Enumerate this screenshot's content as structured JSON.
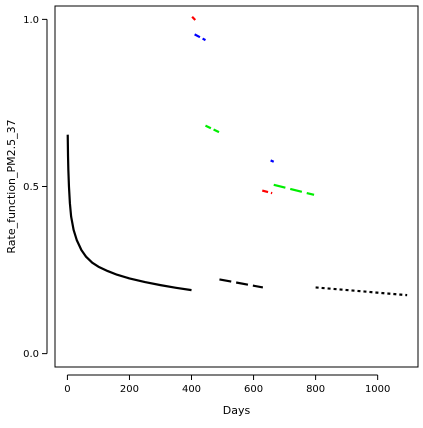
{
  "chart_data": {
    "type": "line",
    "title": "",
    "xlabel": "Days",
    "ylabel": "Rate_function_PM2.5_37",
    "xlim": [
      -40,
      1130
    ],
    "ylim": [
      -0.04,
      1.04
    ],
    "x_ticks": [
      0,
      200,
      400,
      600,
      800,
      1000
    ],
    "y_ticks": [
      0.0,
      0.5,
      1.0
    ],
    "x_tick_labels": [
      "0",
      "200",
      "400",
      "600",
      "800",
      "1000"
    ],
    "y_tick_labels": [
      "0.0",
      "0.5",
      "1.0"
    ],
    "grid": false,
    "legend": "none",
    "series": [
      {
        "color": "#000000",
        "dash": "solid",
        "width": 2.2,
        "x": [
          1,
          2,
          3,
          5,
          8,
          12,
          20,
          30,
          45,
          60,
          80,
          100,
          130,
          160,
          200,
          250,
          300,
          350,
          400
        ],
        "y": [
          0.655,
          0.59,
          0.55,
          0.5,
          0.45,
          0.41,
          0.37,
          0.34,
          0.31,
          0.29,
          0.272,
          0.26,
          0.247,
          0.236,
          0.225,
          0.214,
          0.205,
          0.197,
          0.19
        ]
      },
      {
        "color": "#000000",
        "dash": "long",
        "width": 2.2,
        "x": [
          490,
          630
        ],
        "y": [
          0.222,
          0.198
        ]
      },
      {
        "color": "#000000",
        "dash": "dotted",
        "width": 2.2,
        "x": [
          800,
          1095
        ],
        "y": [
          0.198,
          0.175
        ]
      },
      {
        "color": "#ff0000",
        "dash": "solid",
        "width": 2.2,
        "x": [
          402,
          412
        ],
        "y": [
          1.008,
          0.998
        ]
      },
      {
        "color": "#0000ff",
        "dash": "dashed",
        "width": 2.2,
        "x": [
          410,
          445
        ],
        "y": [
          0.955,
          0.938
        ]
      },
      {
        "color": "#00ee00",
        "dash": "dashed",
        "width": 2.2,
        "x": [
          445,
          490
        ],
        "y": [
          0.682,
          0.662
        ]
      },
      {
        "color": "#0000ff",
        "dash": "solid",
        "width": 2.2,
        "x": [
          655,
          665
        ],
        "y": [
          0.578,
          0.574
        ]
      },
      {
        "color": "#ff0000",
        "dash": "dashed",
        "width": 2.2,
        "x": [
          628,
          660
        ],
        "y": [
          0.488,
          0.48
        ]
      },
      {
        "color": "#00ee00",
        "dash": "long",
        "width": 2.2,
        "x": [
          665,
          795
        ],
        "y": [
          0.505,
          0.475
        ]
      }
    ]
  }
}
